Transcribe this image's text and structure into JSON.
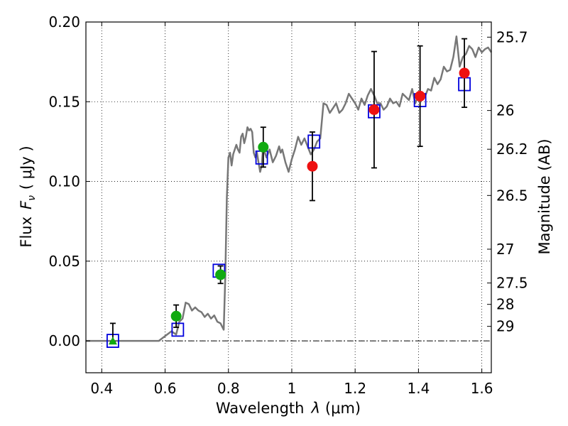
{
  "chart_data": {
    "type": "scatter",
    "xlabel_prefix": "Wavelength",
    "xlabel_symbol": "λ",
    "xlabel_unit": "(μm)",
    "ylabel_prefix": "Flux",
    "ylabel_symbol": "F",
    "ylabel_subscript": "ν",
    "ylabel_unit": "( μJy )",
    "y2label": "Magnitude (AB)",
    "xlim": [
      0.35,
      1.63
    ],
    "ylim": [
      -0.02,
      0.2
    ],
    "grid": true,
    "x_ticks": [
      {
        "value": 0.4,
        "label": "0.4"
      },
      {
        "value": 0.6,
        "label": "0.6"
      },
      {
        "value": 0.8,
        "label": "0.8"
      },
      {
        "value": 1.0,
        "label": "1"
      },
      {
        "value": 1.2,
        "label": "1.2"
      },
      {
        "value": 1.4,
        "label": "1.4"
      },
      {
        "value": 1.6,
        "label": "1.6"
      }
    ],
    "y_ticks": [
      {
        "value": 0.0,
        "label": "0.00"
      },
      {
        "value": 0.05,
        "label": "0.05"
      },
      {
        "value": 0.1,
        "label": "0.10"
      },
      {
        "value": 0.15,
        "label": "0.15"
      },
      {
        "value": 0.2,
        "label": "0.20"
      }
    ],
    "mag_ticks": [
      {
        "flux": 0.1905,
        "label": "25.7"
      },
      {
        "flux": 0.1445,
        "label": "26"
      },
      {
        "flux": 0.1202,
        "label": "26.2"
      },
      {
        "flux": 0.0912,
        "label": "26.5"
      },
      {
        "flux": 0.0575,
        "label": "27"
      },
      {
        "flux": 0.0363,
        "label": "27.5"
      },
      {
        "flux": 0.0229,
        "label": "28"
      },
      {
        "flux": 0.0091,
        "label": "29"
      }
    ],
    "zero_line": 0.0,
    "colors": {
      "model": "#777777",
      "optical": "#11aa11",
      "nir": "#ee1111",
      "model_box": "#0000dd",
      "errorbar": "#000000"
    },
    "model_sed": {
      "name": "model",
      "x": [
        0.35,
        0.58,
        0.6,
        0.62,
        0.635,
        0.645,
        0.655,
        0.665,
        0.675,
        0.685,
        0.695,
        0.705,
        0.715,
        0.725,
        0.735,
        0.745,
        0.755,
        0.765,
        0.775,
        0.785,
        0.79,
        0.795,
        0.8,
        0.805,
        0.81,
        0.815,
        0.825,
        0.83,
        0.835,
        0.84,
        0.845,
        0.85,
        0.855,
        0.86,
        0.865,
        0.87,
        0.875,
        0.88,
        0.885,
        0.89,
        0.895,
        0.9,
        0.905,
        0.91,
        0.915,
        0.92,
        0.93,
        0.94,
        0.95,
        0.96,
        0.965,
        0.97,
        0.98,
        0.99,
        1.0,
        1.01,
        1.02,
        1.03,
        1.04,
        1.05,
        1.06,
        1.07,
        1.08,
        1.09,
        1.1,
        1.11,
        1.12,
        1.13,
        1.14,
        1.15,
        1.16,
        1.17,
        1.18,
        1.19,
        1.2,
        1.21,
        1.22,
        1.23,
        1.24,
        1.25,
        1.26,
        1.27,
        1.28,
        1.29,
        1.3,
        1.31,
        1.32,
        1.33,
        1.34,
        1.35,
        1.36,
        1.37,
        1.38,
        1.39,
        1.4,
        1.41,
        1.42,
        1.43,
        1.44,
        1.45,
        1.46,
        1.47,
        1.48,
        1.49,
        1.5,
        1.51,
        1.52,
        1.53,
        1.54,
        1.55,
        1.56,
        1.57,
        1.58,
        1.59,
        1.6,
        1.61,
        1.62,
        1.63
      ],
      "y": [
        0.0,
        0.0,
        0.003,
        0.006,
        0.004,
        0.012,
        0.014,
        0.024,
        0.023,
        0.019,
        0.021,
        0.019,
        0.018,
        0.015,
        0.017,
        0.014,
        0.016,
        0.012,
        0.011,
        0.007,
        0.04,
        0.09,
        0.115,
        0.118,
        0.11,
        0.117,
        0.123,
        0.12,
        0.118,
        0.128,
        0.13,
        0.124,
        0.128,
        0.134,
        0.132,
        0.133,
        0.131,
        0.118,
        0.115,
        0.118,
        0.112,
        0.106,
        0.11,
        0.123,
        0.118,
        0.115,
        0.12,
        0.112,
        0.116,
        0.122,
        0.118,
        0.12,
        0.112,
        0.106,
        0.114,
        0.12,
        0.128,
        0.123,
        0.127,
        0.122,
        0.117,
        0.12,
        0.125,
        0.127,
        0.149,
        0.148,
        0.143,
        0.146,
        0.149,
        0.143,
        0.145,
        0.149,
        0.155,
        0.152,
        0.149,
        0.145,
        0.152,
        0.148,
        0.154,
        0.158,
        0.154,
        0.149,
        0.149,
        0.145,
        0.147,
        0.152,
        0.149,
        0.15,
        0.147,
        0.155,
        0.153,
        0.151,
        0.158,
        0.149,
        0.154,
        0.156,
        0.153,
        0.158,
        0.157,
        0.165,
        0.161,
        0.164,
        0.172,
        0.169,
        0.17,
        0.178,
        0.191,
        0.172,
        0.178,
        0.18,
        0.185,
        0.183,
        0.178,
        0.184,
        0.181,
        0.183,
        0.184,
        0.181
      ]
    },
    "optical_points": [
      {
        "x": 0.635,
        "y": 0.0155,
        "err": 0.007
      },
      {
        "x": 0.775,
        "y": 0.0415,
        "err": 0.0055
      },
      {
        "x": 0.91,
        "y": 0.1215,
        "err": 0.0125
      }
    ],
    "optical_upper": {
      "x": 0.435,
      "y": -0.0005,
      "err_top": 0.0115
    },
    "nir_points": [
      {
        "x": 1.065,
        "y": 0.1095,
        "err": 0.0215
      },
      {
        "x": 1.26,
        "y": 0.145,
        "err": 0.0365
      },
      {
        "x": 1.405,
        "y": 0.1535,
        "err": 0.0315
      },
      {
        "x": 1.545,
        "y": 0.168,
        "err": 0.0215
      }
    ],
    "model_boxes": [
      {
        "x": 0.435,
        "y": 0.0
      },
      {
        "x": 0.64,
        "y": 0.007
      },
      {
        "x": 0.77,
        "y": 0.044
      },
      {
        "x": 0.905,
        "y": 0.115
      },
      {
        "x": 1.07,
        "y": 0.125
      },
      {
        "x": 1.26,
        "y": 0.144
      },
      {
        "x": 1.405,
        "y": 0.151
      },
      {
        "x": 1.545,
        "y": 0.161
      }
    ]
  }
}
